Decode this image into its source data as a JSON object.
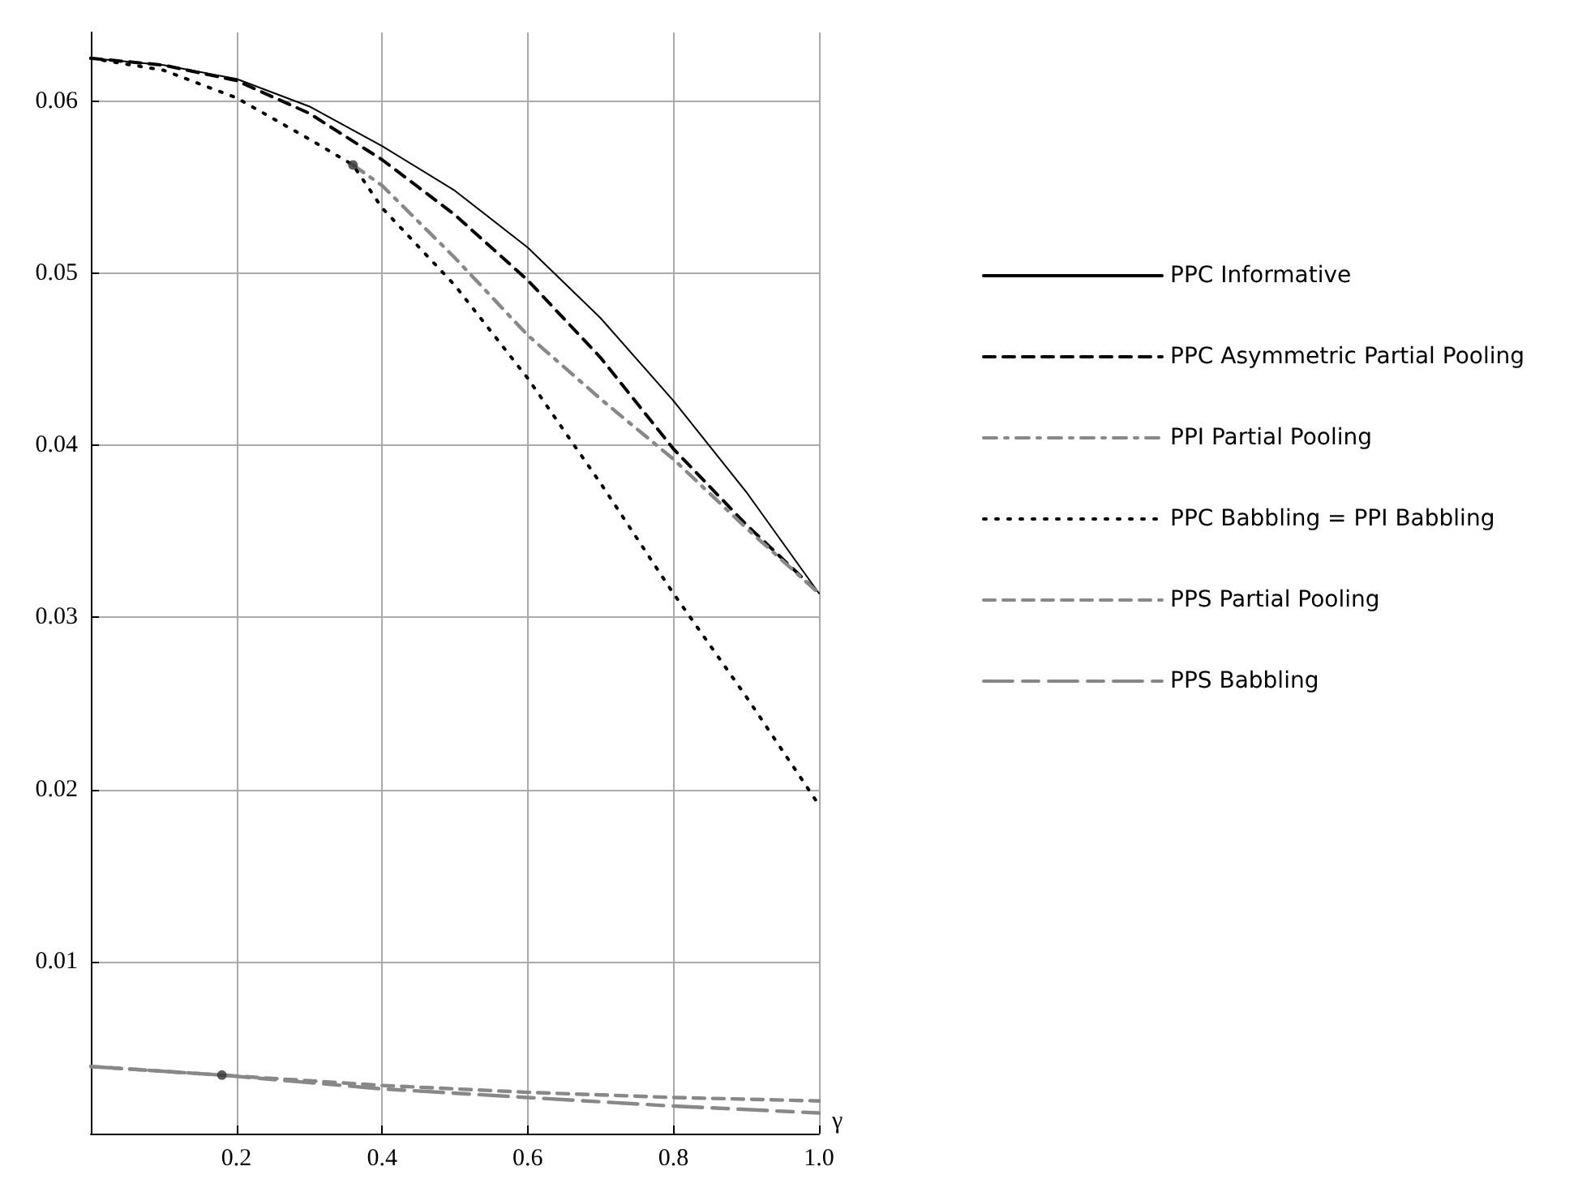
{
  "chart_data": {
    "type": "line",
    "xlabel": "γ",
    "xlim": [
      0,
      1.0
    ],
    "xticks": [
      {
        "value": 0,
        "label": null
      },
      0.2,
      0.4,
      0.6,
      0.8,
      {
        "value": 1.0,
        "label": "1.0"
      }
    ],
    "ylim": [
      0,
      0.064
    ],
    "yticks": [
      {
        "value": 0,
        "label": null
      },
      0.01,
      0.02,
      0.03,
      0.04,
      0.05,
      0.06
    ],
    "grid": true,
    "legend": "right",
    "marker": "none",
    "series": [
      {
        "name": "PPC Informative",
        "color": "#000000",
        "line_style": "solid",
        "x": [
          0,
          0.1,
          0.2,
          0.3,
          0.4,
          0.5,
          0.6,
          0.7,
          0.8,
          0.9,
          1.0
        ],
        "values": [
          0.0625,
          0.0621,
          0.0613,
          0.0597,
          0.0574,
          0.0548,
          0.0515,
          0.0474,
          0.0426,
          0.0373,
          0.0314
        ]
      },
      {
        "name": "PPC Asymmetric Partial Pooling",
        "color": "#000000",
        "line_style": "dashed",
        "x": [
          0,
          0.1,
          0.2,
          0.3,
          0.4,
          0.5,
          0.6,
          0.7,
          0.8,
          0.9,
          1.0
        ],
        "values": [
          0.0625,
          0.0621,
          0.0612,
          0.0593,
          0.0566,
          0.0534,
          0.0496,
          0.0451,
          0.0398,
          0.0354,
          0.0314
        ]
      },
      {
        "name": "PPI Partial Pooling",
        "color": "#888888",
        "line_style": "dashdot",
        "x": [
          0.36,
          0.4,
          0.5,
          0.6,
          0.7,
          0.8,
          0.9,
          1.0
        ],
        "values": [
          0.0563,
          0.0551,
          0.0509,
          0.0464,
          0.0427,
          0.0392,
          0.0352,
          0.0314
        ]
      },
      {
        "name": "PPC Babbling = PPI Babbling",
        "color": "#000000",
        "line_style": "dotted",
        "x": [
          0,
          0.1,
          0.2,
          0.3,
          0.36,
          0.4,
          0.5,
          0.6,
          0.7,
          0.8,
          0.9,
          1.0
        ],
        "values": [
          0.0625,
          0.0618,
          0.0602,
          0.0578,
          0.0563,
          0.0538,
          0.0493,
          0.0439,
          0.0378,
          0.0314,
          0.0254,
          0.0191
        ]
      },
      {
        "name": "PPS Partial Pooling",
        "color": "#888888",
        "line_style": "dashed",
        "x": [
          0,
          0.18,
          0.4,
          0.6,
          0.8,
          1.0
        ],
        "values": [
          0.0039,
          0.0034,
          0.0028,
          0.0024,
          0.0021,
          0.0019
        ]
      },
      {
        "name": "PPS Babbling",
        "color": "#888888",
        "line_style": "longdash",
        "x": [
          0,
          0.18,
          0.4,
          0.6,
          0.8,
          1.0
        ],
        "values": [
          0.0039,
          0.0034,
          0.0026,
          0.0021,
          0.0016,
          0.0012
        ]
      },
      {
        "type": "scatter",
        "color": "#333333",
        "marker": "circle",
        "x": [
          0.36,
          0.18
        ],
        "values": [
          0.0563,
          0.0034
        ]
      }
    ]
  }
}
